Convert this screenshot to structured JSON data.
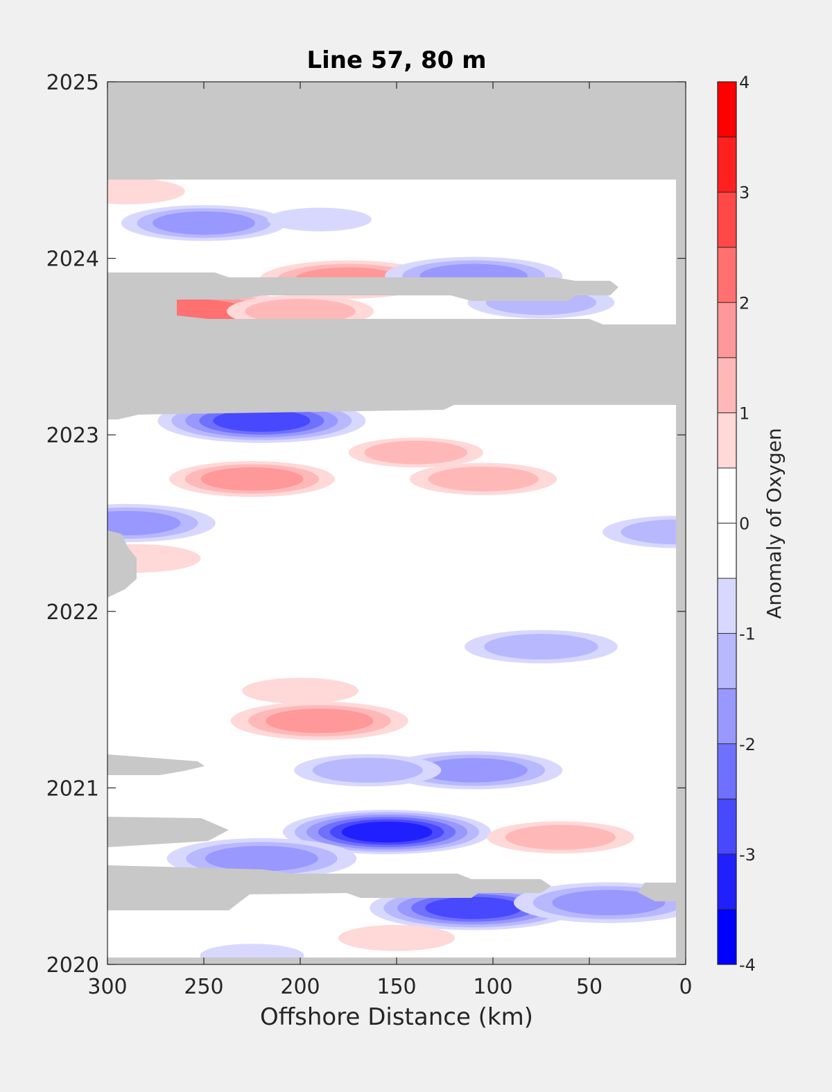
{
  "chart_data": {
    "type": "heatmap",
    "title": "Line 57, 80 m",
    "xlabel": "Offshore Distance (km)",
    "ylabel": "",
    "xlim": [
      300,
      0
    ],
    "ylim": [
      2020,
      2025
    ],
    "x_reversed": true,
    "xticks": [
      300,
      250,
      200,
      150,
      100,
      50,
      0
    ],
    "yticks": [
      2020,
      2021,
      2022,
      2023,
      2024,
      2025
    ],
    "colorbar": {
      "label": "Anomaly of Oxygen",
      "range": [
        -4,
        4
      ],
      "step": 0.5,
      "ticks": [
        4,
        3,
        2,
        1,
        0,
        -1,
        -2,
        -3,
        -4
      ],
      "colors": [
        "#0000ff",
        "#2020ff",
        "#4848ff",
        "#7070ff",
        "#9898ff",
        "#b8b8ff",
        "#d8d8ff",
        "#ffffff",
        "#ffffff",
        "#ffd8d8",
        "#ffb8b8",
        "#ff9898",
        "#ff7070",
        "#ff4848",
        "#ff2020",
        "#ff0000"
      ]
    },
    "no_data_color": "#c8c8c8",
    "no_data_periods": [
      {
        "year_start": 2024.45,
        "year_end": 2025.0
      },
      {
        "year_start": 2023.15,
        "year_end": 2023.6
      },
      {
        "year_start": 2023.7,
        "year_end": 2023.9,
        "note": ""
      },
      {
        "year_start": 2020.25,
        "year_end": 2020.45
      },
      {
        "year_start": 2019.93,
        "year_end": 2019.96
      }
    ],
    "anomalies": [
      {
        "x": 290,
        "y": 2024.38,
        "value": 1.0
      },
      {
        "x": 250,
        "y": 2024.2,
        "value": -1.8
      },
      {
        "x": 190,
        "y": 2024.22,
        "value": -0.8
      },
      {
        "x": 175,
        "y": 2023.88,
        "value": 2.0
      },
      {
        "x": 255,
        "y": 2023.7,
        "value": 2.5
      },
      {
        "x": 200,
        "y": 2023.7,
        "value": 1.5
      },
      {
        "x": 110,
        "y": 2023.9,
        "value": -2.0
      },
      {
        "x": 75,
        "y": 2023.75,
        "value": -1.5
      },
      {
        "x": 220,
        "y": 2023.08,
        "value": -2.8
      },
      {
        "x": 225,
        "y": 2022.75,
        "value": 1.8
      },
      {
        "x": 105,
        "y": 2022.75,
        "value": 1.5
      },
      {
        "x": 140,
        "y": 2022.9,
        "value": 1.3
      },
      {
        "x": 290,
        "y": 2022.5,
        "value": -2.0
      },
      {
        "x": 285,
        "y": 2022.3,
        "value": 1.2
      },
      {
        "x": 5,
        "y": 2022.45,
        "value": -1.5
      },
      {
        "x": 75,
        "y": 2021.8,
        "value": -1.6
      },
      {
        "x": 200,
        "y": 2021.55,
        "value": 1.0
      },
      {
        "x": 190,
        "y": 2021.38,
        "value": 2.0
      },
      {
        "x": 110,
        "y": 2021.1,
        "value": -2.0
      },
      {
        "x": 165,
        "y": 2021.1,
        "value": -1.5
      },
      {
        "x": 155,
        "y": 2020.75,
        "value": -3.5
      },
      {
        "x": 220,
        "y": 2020.6,
        "value": -2.2
      },
      {
        "x": 65,
        "y": 2020.72,
        "value": 1.5
      },
      {
        "x": 110,
        "y": 2020.32,
        "value": -3.2
      },
      {
        "x": 40,
        "y": 2020.35,
        "value": -2.2
      },
      {
        "x": 150,
        "y": 2020.15,
        "value": 1.0
      },
      {
        "x": 225,
        "y": 2020.05,
        "value": -0.8
      }
    ]
  }
}
